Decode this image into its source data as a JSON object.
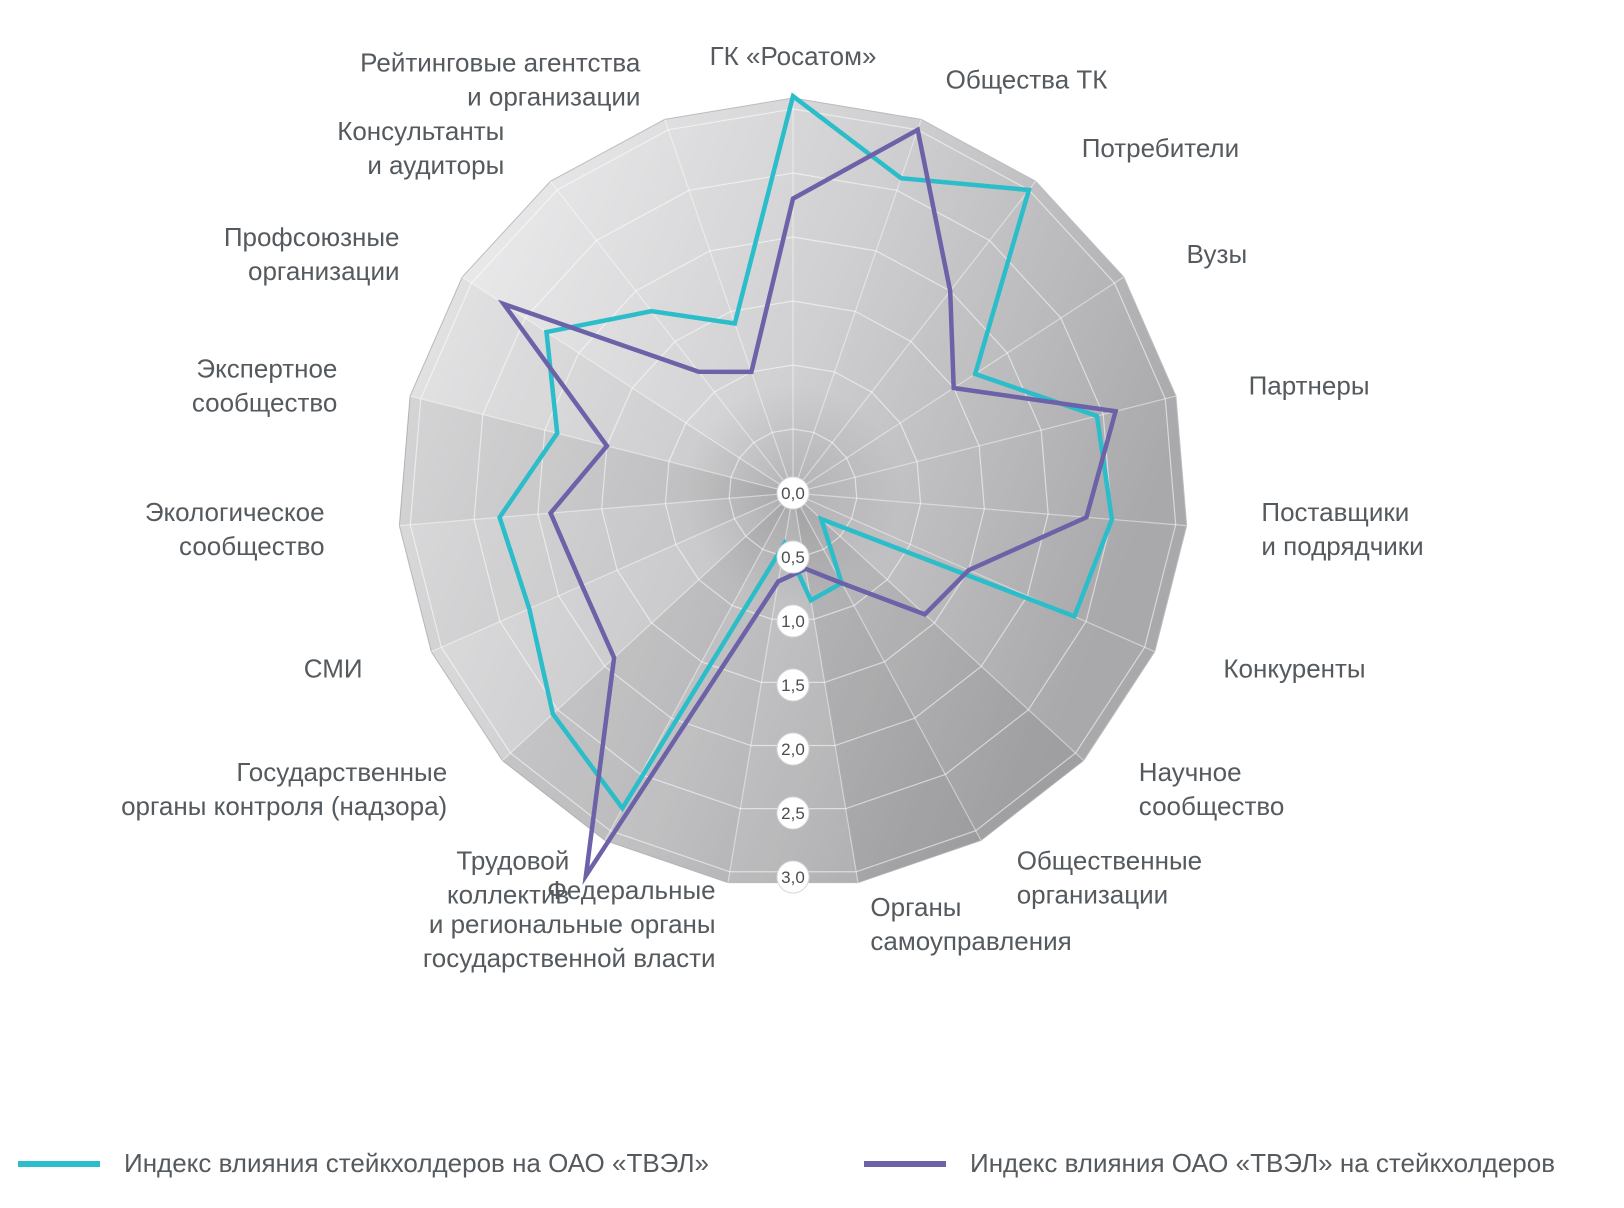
{
  "chart_data": {
    "type": "radar",
    "categories": [
      "ГК «Росатом»",
      "Общества ТК",
      "Потребители",
      "Вузы",
      "Партнеры",
      "Поставщики и подрядчики",
      "Конкуренты",
      "Научное сообщество",
      "Общественные организации",
      "Органы самоуправления",
      "Федеральные и региональные органы государственной власти",
      "Трудовой коллектив",
      "Государственные органы контроля (надзора)",
      "СМИ",
      "Экологическое сообщество",
      "Экспертное сообщество",
      "Профсоюзные организации",
      "Консультанты и аудиторы",
      "Рейтинговые агентства и организации"
    ],
    "category_lines": [
      [
        "ГК «Росатом»"
      ],
      [
        "Общества ТК"
      ],
      [
        "Потребители"
      ],
      [
        "Вузы"
      ],
      [
        "Партнеры"
      ],
      [
        "Поставщики",
        "и подрядчики"
      ],
      [
        "Конкуренты"
      ],
      [
        "Научное",
        "сообщество"
      ],
      [
        "Общественные",
        "организации"
      ],
      [
        "Органы",
        "самоуправления"
      ],
      [
        "Федеральные",
        "и региональные органы",
        "государственной власти"
      ],
      [
        "Трудовой",
        "коллектив"
      ],
      [
        "Государственные",
        "органы контроля (надзора)"
      ],
      [
        "СМИ"
      ],
      [
        "Экологическое",
        "сообщество"
      ],
      [
        "Экспертное",
        "сообщество"
      ],
      [
        "Профсоюзные",
        "организации"
      ],
      [
        "Консультанты",
        "и аудиторы"
      ],
      [
        "Рейтинговые агентства",
        "и организации"
      ]
    ],
    "ticks": [
      "0,0",
      "0,5",
      "1,0",
      "1,5",
      "2,0",
      "2,5",
      "3,0"
    ],
    "rlim": [
      0,
      3
    ],
    "series": [
      {
        "name": "Индекс влияния стейкхолдеров на ОАО «ТВЭЛ»",
        "color": "#2bbdc9",
        "values": [
          3.1,
          2.6,
          3.0,
          1.7,
          2.45,
          2.5,
          2.4,
          0.3,
          0.8,
          0.85,
          0.4,
          2.8,
          2.55,
          2.25,
          2.3,
          1.9,
          2.3,
          1.8,
          1.4
        ]
      },
      {
        "name": "Индекс влияния ОАО «ТВЭЛ» на стейкхолдеров",
        "color": "#6b62a8",
        "values": [
          2.3,
          3.0,
          2.0,
          1.5,
          2.6,
          2.3,
          1.5,
          1.4,
          0.8,
          0.6,
          0.7,
          3.4,
          1.9,
          1.8,
          1.9,
          1.5,
          2.7,
          1.2,
          1.0
        ]
      }
    ],
    "legend_position": "bottom"
  }
}
